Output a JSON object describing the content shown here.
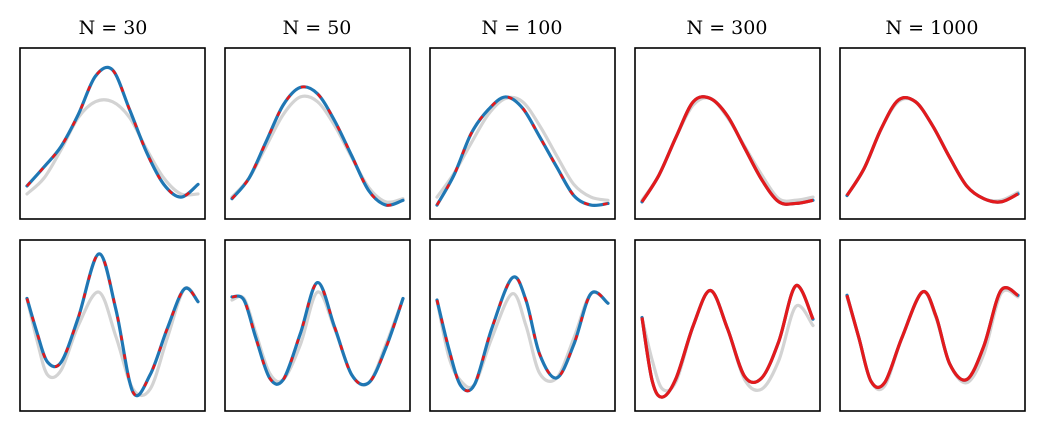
{
  "titles": [
    "N = 30",
    "N = 50",
    "N = 100",
    "N = 300",
    "N = 1000"
  ],
  "colors": {
    "truth": "#d3d3d3",
    "blue": "#1f77b4",
    "red": "#e31a1c"
  },
  "chart_data": {
    "type": "line",
    "layout": "2 rows x 5 columns of small multiples, no axes or tick labels",
    "columns": [
      "N = 30",
      "N = 50",
      "N = 100",
      "N = 300",
      "N = 1000"
    ],
    "series_styles": [
      {
        "key": "truth",
        "color": "#d3d3d3",
        "style": "solid light gray"
      },
      {
        "key": "blue",
        "color": "#1f77b4",
        "style": "solid blue"
      },
      {
        "key": "red",
        "color": "#e31a1c",
        "style": "red, dashed in first three columns, solid in last two"
      }
    ],
    "rows": [
      {
        "row": 1,
        "ylim": [
          0,
          1
        ],
        "panels": [
          {
            "title": "N = 30",
            "truth": [
              [
                0.0,
                0.12
              ],
              [
                0.1,
                0.22
              ],
              [
                0.2,
                0.4
              ],
              [
                0.3,
                0.6
              ],
              [
                0.4,
                0.7
              ],
              [
                0.5,
                0.7
              ],
              [
                0.6,
                0.6
              ],
              [
                0.7,
                0.4
              ],
              [
                0.8,
                0.22
              ],
              [
                0.9,
                0.12
              ],
              [
                1.0,
                0.12
              ]
            ],
            "blue": [
              [
                0.0,
                0.17
              ],
              [
                0.1,
                0.29
              ],
              [
                0.2,
                0.42
              ],
              [
                0.3,
                0.62
              ],
              [
                0.4,
                0.86
              ],
              [
                0.5,
                0.9
              ],
              [
                0.6,
                0.65
              ],
              [
                0.7,
                0.38
              ],
              [
                0.8,
                0.18
              ],
              [
                0.9,
                0.1
              ],
              [
                1.0,
                0.18
              ]
            ],
            "red_dashed": true
          },
          {
            "title": "N = 50",
            "truth": [
              [
                0.0,
                0.1
              ],
              [
                0.1,
                0.22
              ],
              [
                0.2,
                0.42
              ],
              [
                0.3,
                0.62
              ],
              [
                0.4,
                0.73
              ],
              [
                0.5,
                0.7
              ],
              [
                0.6,
                0.55
              ],
              [
                0.7,
                0.35
              ],
              [
                0.8,
                0.16
              ],
              [
                0.9,
                0.07
              ],
              [
                1.0,
                0.09
              ]
            ],
            "blue": [
              [
                0.0,
                0.09
              ],
              [
                0.1,
                0.22
              ],
              [
                0.2,
                0.45
              ],
              [
                0.3,
                0.68
              ],
              [
                0.4,
                0.79
              ],
              [
                0.5,
                0.75
              ],
              [
                0.6,
                0.58
              ],
              [
                0.7,
                0.36
              ],
              [
                0.8,
                0.14
              ],
              [
                0.9,
                0.05
              ],
              [
                1.0,
                0.08
              ]
            ],
            "red_dashed": true
          },
          {
            "title": "N = 100",
            "truth": [
              [
                0.0,
                0.1
              ],
              [
                0.1,
                0.25
              ],
              [
                0.2,
                0.44
              ],
              [
                0.3,
                0.62
              ],
              [
                0.4,
                0.72
              ],
              [
                0.5,
                0.7
              ],
              [
                0.6,
                0.55
              ],
              [
                0.7,
                0.36
              ],
              [
                0.8,
                0.18
              ],
              [
                0.9,
                0.1
              ],
              [
                1.0,
                0.08
              ]
            ],
            "blue": [
              [
                0.0,
                0.05
              ],
              [
                0.1,
                0.24
              ],
              [
                0.2,
                0.5
              ],
              [
                0.3,
                0.65
              ],
              [
                0.4,
                0.73
              ],
              [
                0.5,
                0.66
              ],
              [
                0.6,
                0.48
              ],
              [
                0.7,
                0.29
              ],
              [
                0.8,
                0.11
              ],
              [
                0.9,
                0.05
              ],
              [
                1.0,
                0.06
              ]
            ],
            "red_dashed": true
          },
          {
            "title": "N = 300",
            "truth": [
              [
                0.0,
                0.08
              ],
              [
                0.1,
                0.24
              ],
              [
                0.2,
                0.48
              ],
              [
                0.3,
                0.68
              ],
              [
                0.4,
                0.72
              ],
              [
                0.5,
                0.6
              ],
              [
                0.6,
                0.42
              ],
              [
                0.7,
                0.24
              ],
              [
                0.8,
                0.09
              ],
              [
                0.9,
                0.08
              ],
              [
                1.0,
                0.1
              ]
            ],
            "blue": [
              [
                0.0,
                0.07
              ],
              [
                0.1,
                0.24
              ],
              [
                0.2,
                0.48
              ],
              [
                0.3,
                0.7
              ],
              [
                0.4,
                0.72
              ],
              [
                0.5,
                0.61
              ],
              [
                0.6,
                0.41
              ],
              [
                0.7,
                0.21
              ],
              [
                0.8,
                0.07
              ],
              [
                0.9,
                0.06
              ],
              [
                1.0,
                0.08
              ]
            ],
            "red_dashed": false
          },
          {
            "title": "N = 1000",
            "truth": [
              [
                0.0,
                0.11
              ],
              [
                0.1,
                0.28
              ],
              [
                0.2,
                0.53
              ],
              [
                0.3,
                0.7
              ],
              [
                0.4,
                0.7
              ],
              [
                0.5,
                0.55
              ],
              [
                0.6,
                0.35
              ],
              [
                0.7,
                0.17
              ],
              [
                0.8,
                0.09
              ],
              [
                0.9,
                0.08
              ],
              [
                1.0,
                0.13
              ]
            ],
            "blue": [
              [
                0.0,
                0.11
              ],
              [
                0.1,
                0.28
              ],
              [
                0.2,
                0.53
              ],
              [
                0.3,
                0.71
              ],
              [
                0.4,
                0.7
              ],
              [
                0.5,
                0.55
              ],
              [
                0.6,
                0.35
              ],
              [
                0.7,
                0.17
              ],
              [
                0.8,
                0.09
              ],
              [
                0.9,
                0.07
              ],
              [
                1.0,
                0.12
              ]
            ],
            "red_dashed": false
          }
        ]
      },
      {
        "row": 2,
        "ylim": [
          0,
          1
        ],
        "panels": [
          {
            "title": "N = 30",
            "truth": [
              [
                0.0,
                0.67
              ],
              [
                0.06,
                0.4
              ],
              [
                0.12,
                0.19
              ],
              [
                0.2,
                0.22
              ],
              [
                0.3,
                0.5
              ],
              [
                0.42,
                0.71
              ],
              [
                0.52,
                0.43
              ],
              [
                0.62,
                0.1
              ],
              [
                0.72,
                0.1
              ],
              [
                0.82,
                0.42
              ],
              [
                0.92,
                0.73
              ],
              [
                1.0,
                0.65
              ]
            ],
            "blue": [
              [
                0.0,
                0.67
              ],
              [
                0.06,
                0.45
              ],
              [
                0.12,
                0.27
              ],
              [
                0.2,
                0.27
              ],
              [
                0.3,
                0.55
              ],
              [
                0.42,
                0.95
              ],
              [
                0.52,
                0.6
              ],
              [
                0.62,
                0.08
              ],
              [
                0.72,
                0.19
              ],
              [
                0.82,
                0.48
              ],
              [
                0.92,
                0.73
              ],
              [
                1.0,
                0.65
              ]
            ],
            "red_dashed": true
          },
          {
            "title": "N = 50",
            "truth": [
              [
                0.0,
                0.66
              ],
              [
                0.07,
                0.67
              ],
              [
                0.14,
                0.45
              ],
              [
                0.22,
                0.2
              ],
              [
                0.3,
                0.16
              ],
              [
                0.4,
                0.38
              ],
              [
                0.5,
                0.71
              ],
              [
                0.6,
                0.48
              ],
              [
                0.7,
                0.19
              ],
              [
                0.8,
                0.14
              ],
              [
                0.9,
                0.38
              ],
              [
                1.0,
                0.67
              ]
            ],
            "blue": [
              [
                0.0,
                0.68
              ],
              [
                0.07,
                0.66
              ],
              [
                0.14,
                0.42
              ],
              [
                0.22,
                0.17
              ],
              [
                0.3,
                0.16
              ],
              [
                0.4,
                0.45
              ],
              [
                0.5,
                0.77
              ],
              [
                0.6,
                0.49
              ],
              [
                0.7,
                0.19
              ],
              [
                0.8,
                0.14
              ],
              [
                0.9,
                0.36
              ],
              [
                1.0,
                0.67
              ]
            ],
            "red_dashed": true
          },
          {
            "title": "N = 100",
            "truth": [
              [
                0.0,
                0.66
              ],
              [
                0.07,
                0.3
              ],
              [
                0.14,
                0.15
              ],
              [
                0.22,
                0.13
              ],
              [
                0.32,
                0.42
              ],
              [
                0.44,
                0.7
              ],
              [
                0.52,
                0.5
              ],
              [
                0.6,
                0.2
              ],
              [
                0.7,
                0.17
              ],
              [
                0.8,
                0.42
              ],
              [
                0.9,
                0.7
              ],
              [
                1.0,
                0.64
              ]
            ],
            "blue": [
              [
                0.0,
                0.66
              ],
              [
                0.07,
                0.35
              ],
              [
                0.14,
                0.12
              ],
              [
                0.22,
                0.13
              ],
              [
                0.32,
                0.48
              ],
              [
                0.44,
                0.8
              ],
              [
                0.52,
                0.66
              ],
              [
                0.6,
                0.32
              ],
              [
                0.7,
                0.17
              ],
              [
                0.8,
                0.38
              ],
              [
                0.9,
                0.7
              ],
              [
                1.0,
                0.64
              ]
            ],
            "red_dashed": true
          },
          {
            "title": "N = 300",
            "truth": [
              [
                0.0,
                0.55
              ],
              [
                0.06,
                0.28
              ],
              [
                0.12,
                0.1
              ],
              [
                0.2,
                0.15
              ],
              [
                0.3,
                0.5
              ],
              [
                0.4,
                0.72
              ],
              [
                0.5,
                0.48
              ],
              [
                0.6,
                0.16
              ],
              [
                0.7,
                0.1
              ],
              [
                0.8,
                0.28
              ],
              [
                0.9,
                0.62
              ],
              [
                1.0,
                0.5
              ]
            ],
            "blue": [
              [
                0.0,
                0.55
              ],
              [
                0.06,
                0.15
              ],
              [
                0.12,
                0.05
              ],
              [
                0.2,
                0.17
              ],
              [
                0.3,
                0.5
              ],
              [
                0.4,
                0.72
              ],
              [
                0.5,
                0.48
              ],
              [
                0.6,
                0.18
              ],
              [
                0.7,
                0.17
              ],
              [
                0.8,
                0.4
              ],
              [
                0.9,
                0.75
              ],
              [
                1.0,
                0.54
              ]
            ],
            "red_dashed": false
          },
          {
            "title": "N = 1000",
            "truth": [
              [
                0.0,
                0.68
              ],
              [
                0.07,
                0.42
              ],
              [
                0.14,
                0.15
              ],
              [
                0.22,
                0.12
              ],
              [
                0.32,
                0.42
              ],
              [
                0.44,
                0.71
              ],
              [
                0.52,
                0.55
              ],
              [
                0.6,
                0.26
              ],
              [
                0.7,
                0.14
              ],
              [
                0.8,
                0.32
              ],
              [
                0.9,
                0.7
              ],
              [
                1.0,
                0.68
              ]
            ],
            "blue": [
              [
                0.0,
                0.69
              ],
              [
                0.07,
                0.42
              ],
              [
                0.14,
                0.15
              ],
              [
                0.22,
                0.14
              ],
              [
                0.32,
                0.42
              ],
              [
                0.44,
                0.71
              ],
              [
                0.52,
                0.56
              ],
              [
                0.6,
                0.26
              ],
              [
                0.7,
                0.16
              ],
              [
                0.8,
                0.37
              ],
              [
                0.9,
                0.72
              ],
              [
                1.0,
                0.69
              ]
            ],
            "red_dashed": false
          }
        ]
      }
    ]
  }
}
